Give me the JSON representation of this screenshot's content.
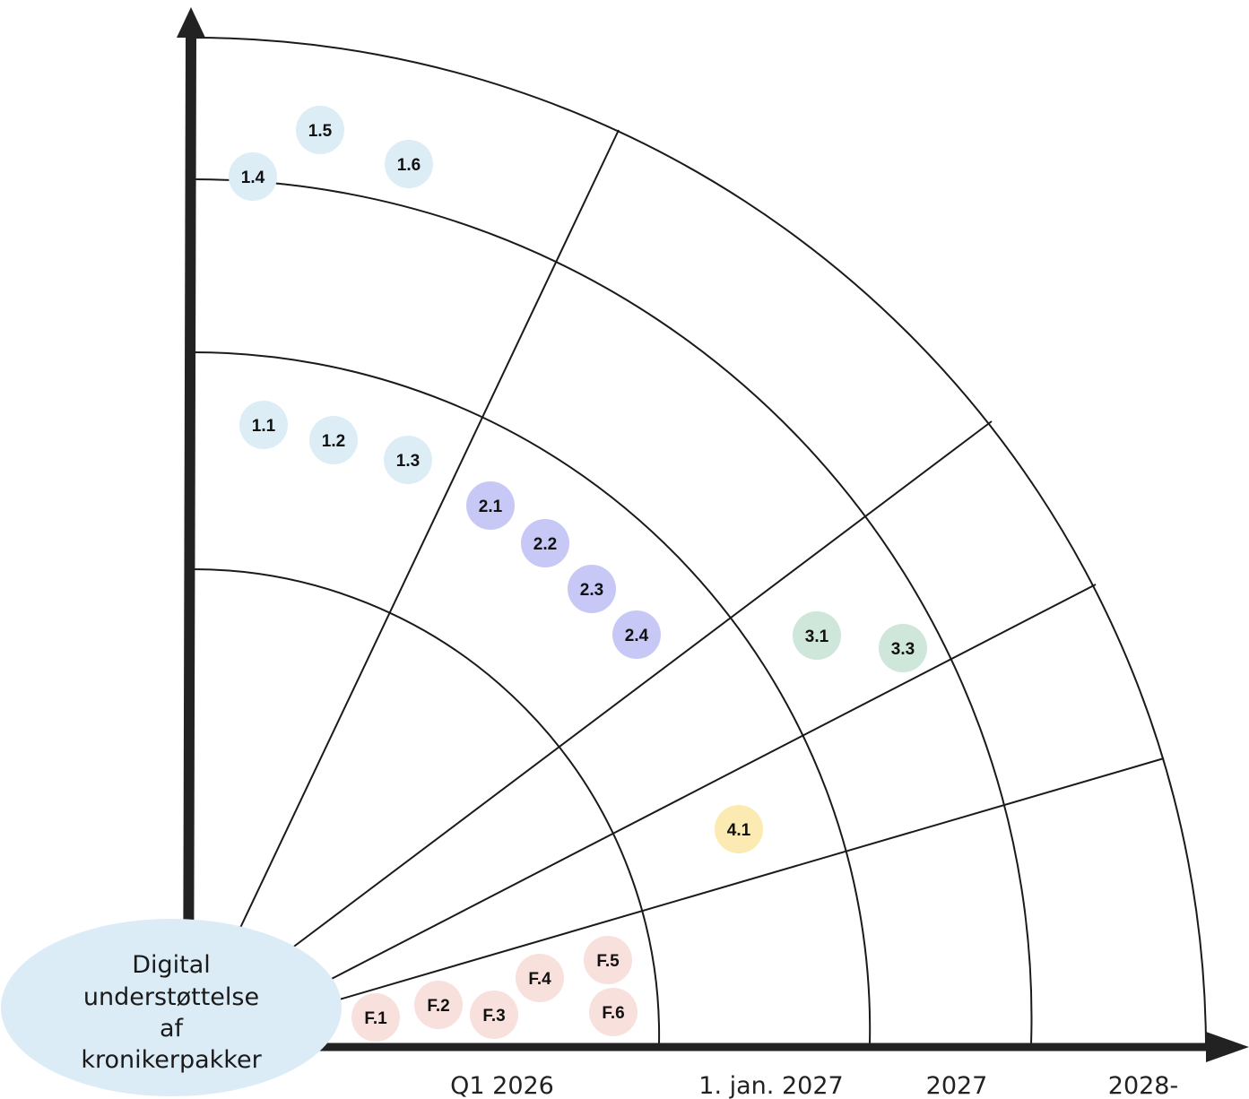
{
  "center_label": [
    "Digital",
    "understøttelse",
    "af",
    "kronikerpakker"
  ],
  "timeline_labels": [
    "Q1 2026",
    "1. jan. 2027",
    "2027",
    "2028-"
  ],
  "colors": {
    "line": "#1a1a1a",
    "axis": "#222222",
    "center": "#dcecf6",
    "group_1": "#dcedf6",
    "group_2": "#c8c8f7",
    "group_3": "#cfe6da",
    "group_4": "#fbebb2",
    "group_F": "#f8e0dc"
  },
  "items": [
    {
      "label": "1.5",
      "group": "group_1"
    },
    {
      "label": "1.6",
      "group": "group_1"
    },
    {
      "label": "1.4",
      "group": "group_1"
    },
    {
      "label": "1.1",
      "group": "group_1"
    },
    {
      "label": "1.2",
      "group": "group_1"
    },
    {
      "label": "1.3",
      "group": "group_1"
    },
    {
      "label": "2.1",
      "group": "group_2"
    },
    {
      "label": "2.2",
      "group": "group_2"
    },
    {
      "label": "2.3",
      "group": "group_2"
    },
    {
      "label": "2.4",
      "group": "group_2"
    },
    {
      "label": "3.1",
      "group": "group_3"
    },
    {
      "label": "3.3",
      "group": "group_3"
    },
    {
      "label": "4.1",
      "group": "group_4"
    },
    {
      "label": "F.1",
      "group": "group_F"
    },
    {
      "label": "F.2",
      "group": "group_F"
    },
    {
      "label": "F.3",
      "group": "group_F"
    },
    {
      "label": "F.4",
      "group": "group_F"
    },
    {
      "label": "F.5",
      "group": "group_F"
    },
    {
      "label": "F.6",
      "group": "group_F"
    }
  ]
}
